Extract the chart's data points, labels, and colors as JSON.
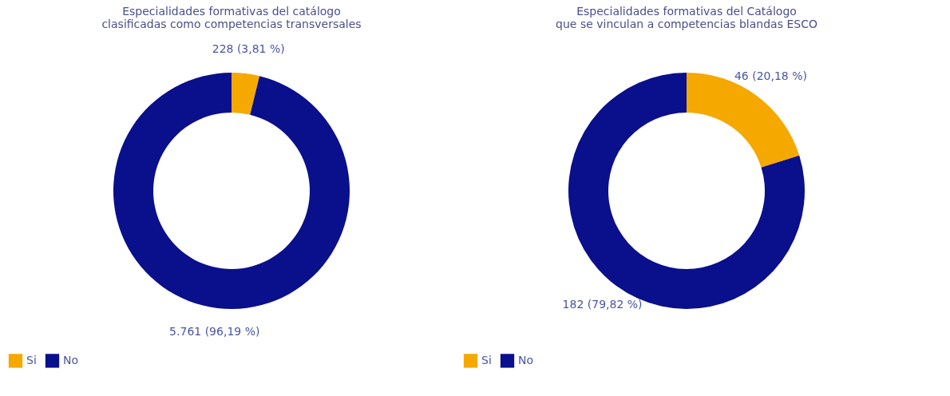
{
  "chart_data": [
    {
      "type": "donut",
      "title": "Especialidades formativas del catálogo\nclasificadas como competencias transversales",
      "categories": [
        "Si",
        "No"
      ],
      "values": [
        228,
        5761
      ],
      "colors": [
        "#f5a800",
        "#0a0f8c"
      ],
      "value_labels": [
        "228 (3,81 %)",
        "5.761 (96,19 %)"
      ],
      "legend": "bottom"
    },
    {
      "type": "donut",
      "title": "Especialidades formativas del Catálogo\nque se vinculan a competencias blandas ESCO",
      "categories": [
        "Si",
        "No"
      ],
      "values": [
        46,
        182
      ],
      "colors": [
        "#f5a800",
        "#0a0f8c"
      ],
      "value_labels": [
        "46 (20,18 %)",
        "182 (79,82 %)"
      ],
      "legend": "bottom"
    }
  ]
}
